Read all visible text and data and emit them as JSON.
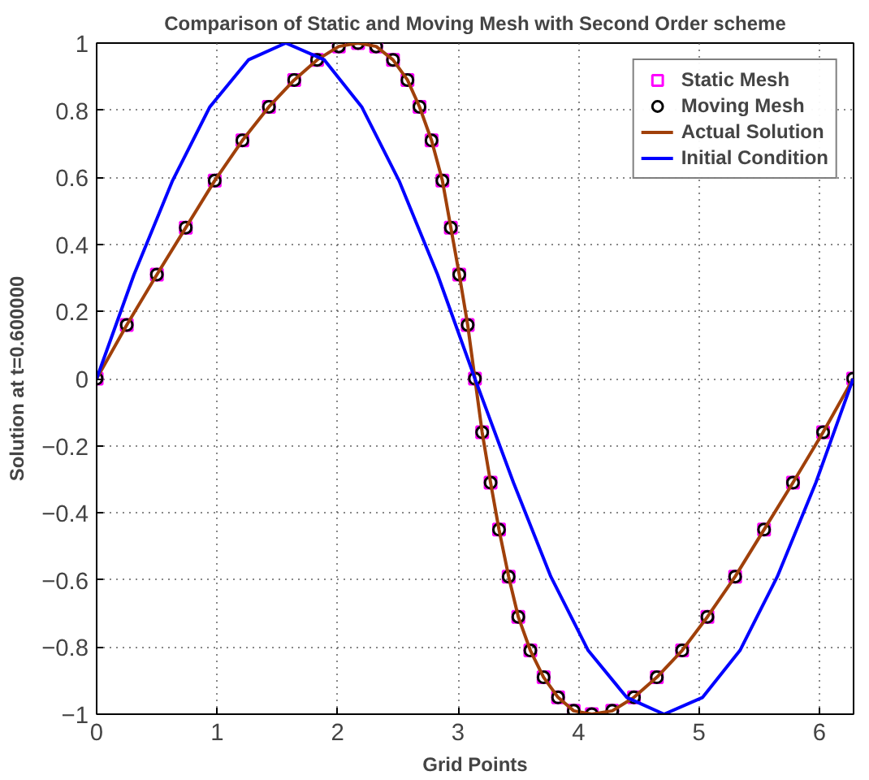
{
  "chart_data": {
    "type": "line",
    "title": "Comparison of Static and Moving Mesh with Second Order scheme",
    "xlabel": "Grid Points",
    "ylabel": "Solution at t=0.600000",
    "xlim": [
      0,
      6.283
    ],
    "ylim": [
      -1,
      1
    ],
    "xticks": [
      0,
      1,
      2,
      3,
      4,
      5,
      6
    ],
    "yticks": [
      -1,
      -0.8,
      -0.6,
      -0.4,
      -0.2,
      0,
      0.2,
      0.4,
      0.6,
      0.8,
      1
    ],
    "grid": true,
    "legend": "top right",
    "series": [
      {
        "name": "Static Mesh",
        "type": "scatter",
        "marker": "square",
        "color": "#ff00ff",
        "x": [
          0,
          0.25,
          0.5,
          0.74,
          0.98,
          1.21,
          1.43,
          1.64,
          1.83,
          2.01,
          2.17,
          2.32,
          2.46,
          2.58,
          2.68,
          2.78,
          2.87,
          2.94,
          3.01,
          3.08,
          3.14,
          3.2,
          3.27,
          3.34,
          3.42,
          3.5,
          3.6,
          3.71,
          3.83,
          3.96,
          4.11,
          4.28,
          4.46,
          4.65,
          4.86,
          5.07,
          5.3,
          5.54,
          5.78,
          6.03,
          6.28
        ],
        "values": [
          0,
          0.16,
          0.31,
          0.45,
          0.59,
          0.71,
          0.81,
          0.89,
          0.95,
          0.99,
          1,
          0.99,
          0.95,
          0.89,
          0.81,
          0.71,
          0.59,
          0.45,
          0.31,
          0.16,
          0,
          -0.16,
          -0.31,
          -0.45,
          -0.59,
          -0.71,
          -0.81,
          -0.89,
          -0.95,
          -0.99,
          -1,
          -0.99,
          -0.95,
          -0.89,
          -0.81,
          -0.71,
          -0.59,
          -0.45,
          -0.31,
          -0.16,
          0
        ]
      },
      {
        "name": "Moving Mesh",
        "type": "scatter",
        "marker": "circle",
        "color": "#000000",
        "x": [
          0,
          0.25,
          0.5,
          0.74,
          0.98,
          1.21,
          1.43,
          1.64,
          1.83,
          2.01,
          2.17,
          2.32,
          2.46,
          2.58,
          2.68,
          2.78,
          2.87,
          2.94,
          3.01,
          3.08,
          3.14,
          3.2,
          3.27,
          3.34,
          3.42,
          3.5,
          3.6,
          3.71,
          3.83,
          3.96,
          4.11,
          4.28,
          4.46,
          4.65,
          4.86,
          5.07,
          5.3,
          5.54,
          5.78,
          6.03,
          6.28
        ],
        "values": [
          0,
          0.16,
          0.31,
          0.45,
          0.59,
          0.71,
          0.81,
          0.89,
          0.95,
          0.99,
          1,
          0.99,
          0.95,
          0.89,
          0.81,
          0.71,
          0.59,
          0.45,
          0.31,
          0.16,
          0,
          -0.16,
          -0.31,
          -0.45,
          -0.59,
          -0.71,
          -0.81,
          -0.89,
          -0.95,
          -0.99,
          -1,
          -0.99,
          -0.95,
          -0.89,
          -0.81,
          -0.71,
          -0.59,
          -0.45,
          -0.31,
          -0.16,
          0
        ]
      },
      {
        "name": "Actual Solution",
        "color": "#a0400a",
        "x": [
          0,
          0.25,
          0.5,
          0.74,
          0.98,
          1.21,
          1.43,
          1.64,
          1.83,
          2.01,
          2.17,
          2.32,
          2.46,
          2.58,
          2.68,
          2.78,
          2.87,
          2.94,
          3.01,
          3.08,
          3.14,
          3.2,
          3.27,
          3.34,
          3.42,
          3.5,
          3.6,
          3.71,
          3.83,
          3.96,
          4.11,
          4.28,
          4.46,
          4.65,
          4.86,
          5.07,
          5.3,
          5.54,
          5.78,
          6.03,
          6.28
        ],
        "values": [
          0,
          0.16,
          0.31,
          0.45,
          0.59,
          0.71,
          0.81,
          0.89,
          0.95,
          0.99,
          1,
          0.99,
          0.95,
          0.89,
          0.81,
          0.71,
          0.59,
          0.45,
          0.31,
          0.16,
          0,
          -0.16,
          -0.31,
          -0.45,
          -0.59,
          -0.71,
          -0.81,
          -0.89,
          -0.95,
          -0.99,
          -1,
          -0.99,
          -0.95,
          -0.89,
          -0.81,
          -0.71,
          -0.59,
          -0.45,
          -0.31,
          -0.16,
          0
        ]
      },
      {
        "name": "Initial Condition",
        "color": "#0000ff",
        "x": [
          0,
          0.31,
          0.63,
          0.94,
          1.26,
          1.57,
          1.89,
          2.2,
          2.51,
          2.83,
          3.14,
          3.46,
          3.77,
          4.08,
          4.4,
          4.71,
          5.03,
          5.34,
          5.65,
          5.97,
          6.28
        ],
        "values": [
          0,
          0.31,
          0.59,
          0.81,
          0.95,
          1,
          0.95,
          0.81,
          0.59,
          0.31,
          0,
          -0.31,
          -0.59,
          -0.81,
          -0.95,
          -1,
          -0.95,
          -0.81,
          -0.59,
          -0.31,
          0
        ]
      }
    ]
  }
}
